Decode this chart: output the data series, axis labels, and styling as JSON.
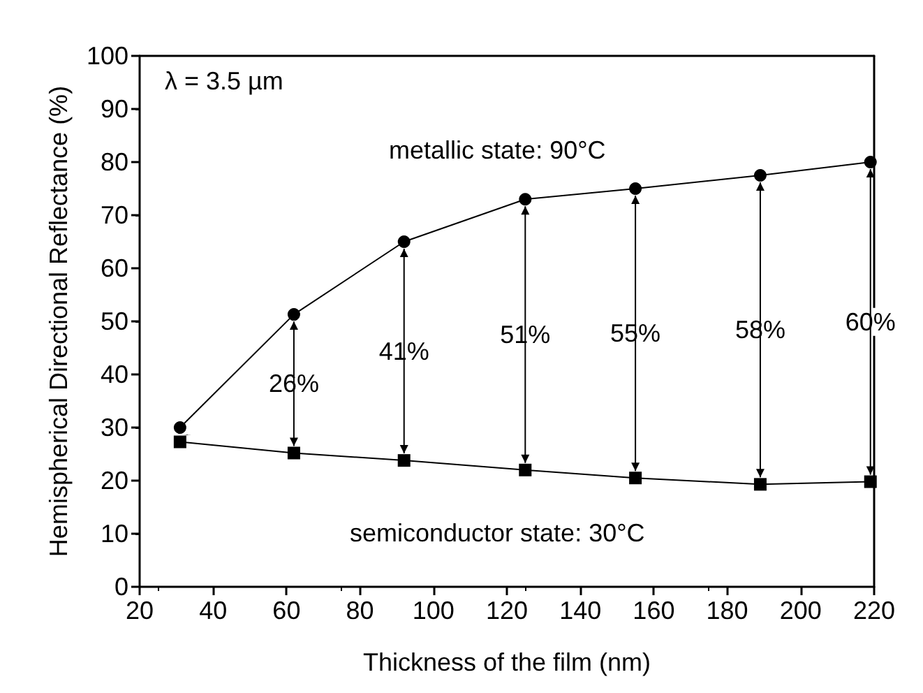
{
  "chart_data": {
    "type": "line",
    "xlabel": "Thickness of the film (nm)",
    "ylabel": "Hemispherical Directional Reflectance (%)",
    "x": [
      31,
      62,
      92,
      125,
      155,
      189,
      219
    ],
    "series": [
      {
        "name": "metallic state: 90°C",
        "color": "#000000",
        "marker": "circle",
        "values": [
          30,
          51.3,
          65,
          73,
          75,
          77.5,
          80
        ]
      },
      {
        "name": "semiconductor state: 30°C",
        "color": "#000000",
        "marker": "square",
        "values": [
          27.3,
          25.2,
          23.8,
          22,
          20.5,
          19.3,
          19.8
        ]
      }
    ],
    "xlim": [
      20,
      220
    ],
    "xticks": [
      20,
      40,
      60,
      80,
      100,
      120,
      140,
      160,
      180,
      200,
      220
    ],
    "ylim": [
      0,
      100
    ],
    "yticks": [
      0,
      10,
      20,
      30,
      40,
      50,
      60,
      70,
      80,
      90,
      100
    ],
    "grid": false,
    "legend": false,
    "line_style": "solid",
    "annotations": [
      "λ = 3.5 µm",
      "26%",
      "41%",
      "51%",
      "55%",
      "58%",
      "60%"
    ]
  }
}
